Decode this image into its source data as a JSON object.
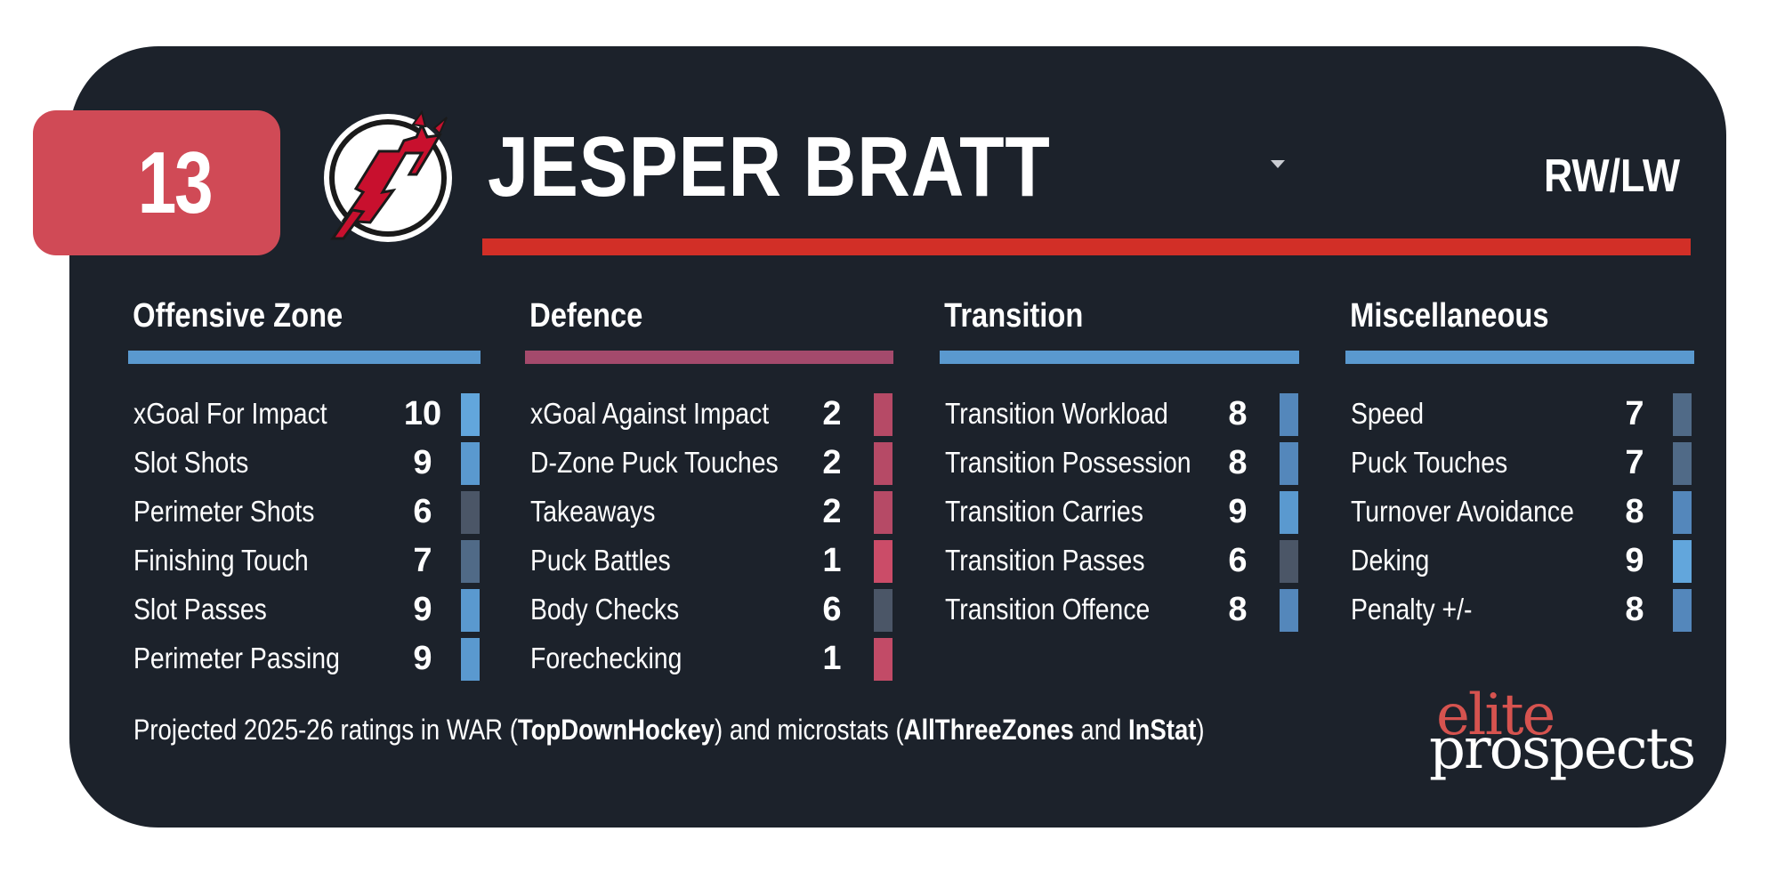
{
  "player": {
    "number": "13",
    "name": "JESPER BRATT",
    "position": "RW/LW"
  },
  "colors": {
    "card_bg": "#1c222b",
    "badge": "#d04a56",
    "name_bar": "#d22f27",
    "blue": "#5a99cf",
    "pink": "#a44a6c"
  },
  "columns": [
    {
      "title": "Offensive Zone",
      "bar_color": "#5a99cf",
      "rows": [
        {
          "label": "xGoal For Impact",
          "value": "10",
          "color": "#62a6dc"
        },
        {
          "label": "Slot Shots",
          "value": "9",
          "color": "#5a99cf"
        },
        {
          "label": "Perimeter Shots",
          "value": "6",
          "color": "#4b5667"
        },
        {
          "label": "Finishing Touch",
          "value": "7",
          "color": "#506a87"
        },
        {
          "label": "Slot Passes",
          "value": "9",
          "color": "#5a99cf"
        },
        {
          "label": "Perimeter Passing",
          "value": "9",
          "color": "#5a99cf"
        }
      ]
    },
    {
      "title": "Defence",
      "bar_color": "#a44a6c",
      "rows": [
        {
          "label": "xGoal Against Impact",
          "value": "2",
          "color": "#b64a66"
        },
        {
          "label": "D-Zone Puck Touches",
          "value": "2",
          "color": "#b64a66"
        },
        {
          "label": "Takeaways",
          "value": "2",
          "color": "#b64a66"
        },
        {
          "label": "Puck Battles",
          "value": "1",
          "color": "#cb4c68"
        },
        {
          "label": "Body Checks",
          "value": "6",
          "color": "#4b5667"
        },
        {
          "label": "Forechecking",
          "value": "1",
          "color": "#c24b67"
        }
      ]
    },
    {
      "title": "Transition",
      "bar_color": "#5a99cf",
      "rows": [
        {
          "label": "Transition Workload",
          "value": "8",
          "color": "#5487bb"
        },
        {
          "label": "Transition Possession",
          "value": "8",
          "color": "#5487bb"
        },
        {
          "label": "Transition Carries",
          "value": "9",
          "color": "#5a99cf"
        },
        {
          "label": "Transition Passes",
          "value": "6",
          "color": "#4b5667"
        },
        {
          "label": "Transition Offence",
          "value": "8",
          "color": "#5487bb"
        }
      ]
    },
    {
      "title": "Miscellaneous",
      "bar_color": "#5a99cf",
      "rows": [
        {
          "label": "Speed",
          "value": "7",
          "color": "#506a87"
        },
        {
          "label": "Puck Touches",
          "value": "7",
          "color": "#506a87"
        },
        {
          "label": "Turnover Avoidance",
          "value": "8",
          "color": "#5487bb"
        },
        {
          "label": "Deking",
          "value": "9",
          "color": "#62a6dc"
        },
        {
          "label": "Penalty +/-",
          "value": "8",
          "color": "#5487bb"
        }
      ]
    }
  ],
  "footer": {
    "t1": "Projected 2025-26 ratings in WAR (",
    "b1": "TopDownHockey",
    "t2": ") and microstats (",
    "b2": "AllThreeZones",
    "t3": " and ",
    "b3": "InStat",
    "t4": ")"
  },
  "brand": {
    "top": "elite",
    "bottom": "prospects"
  }
}
